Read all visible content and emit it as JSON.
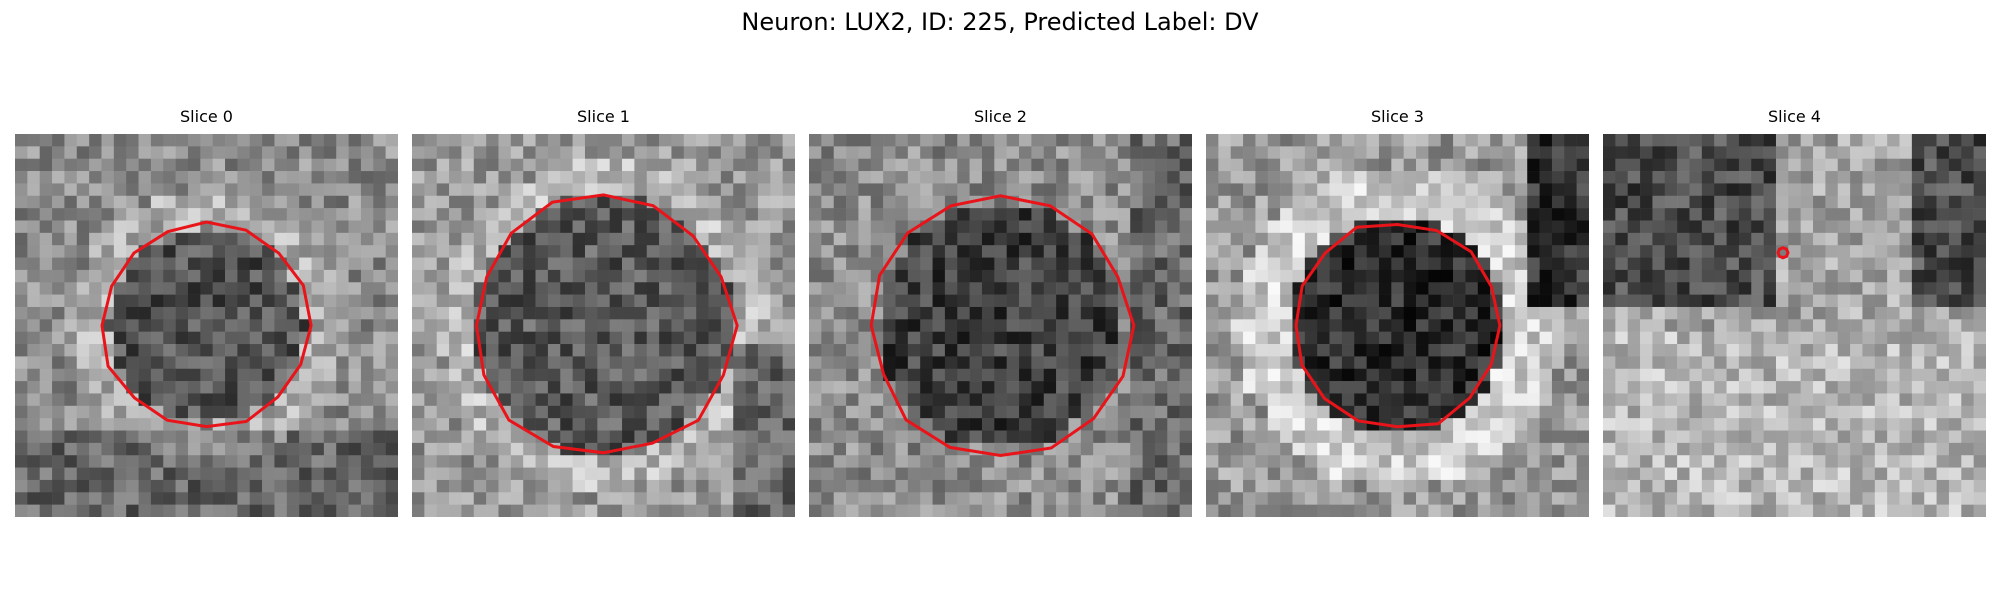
{
  "figure": {
    "title": "Neuron: LUX2, ID: 225, Predicted Label: DV"
  },
  "colors": {
    "contour": "#e8141a"
  },
  "panels": [
    {
      "title": "Slice 0",
      "seed": 11,
      "region": "ring",
      "contour": "octagon-medium"
    },
    {
      "title": "Slice 1",
      "seed": 23,
      "region": "ring-large",
      "contour": "octagon-large"
    },
    {
      "title": "Slice 2",
      "seed": 37,
      "region": "square-dark",
      "contour": "octagon-large"
    },
    {
      "title": "Slice 3",
      "seed": 41,
      "region": "disc-bright-ring",
      "contour": "octagon-medium"
    },
    {
      "title": "Slice 4",
      "seed": 59,
      "region": "mixed",
      "contour": "point"
    }
  ]
}
